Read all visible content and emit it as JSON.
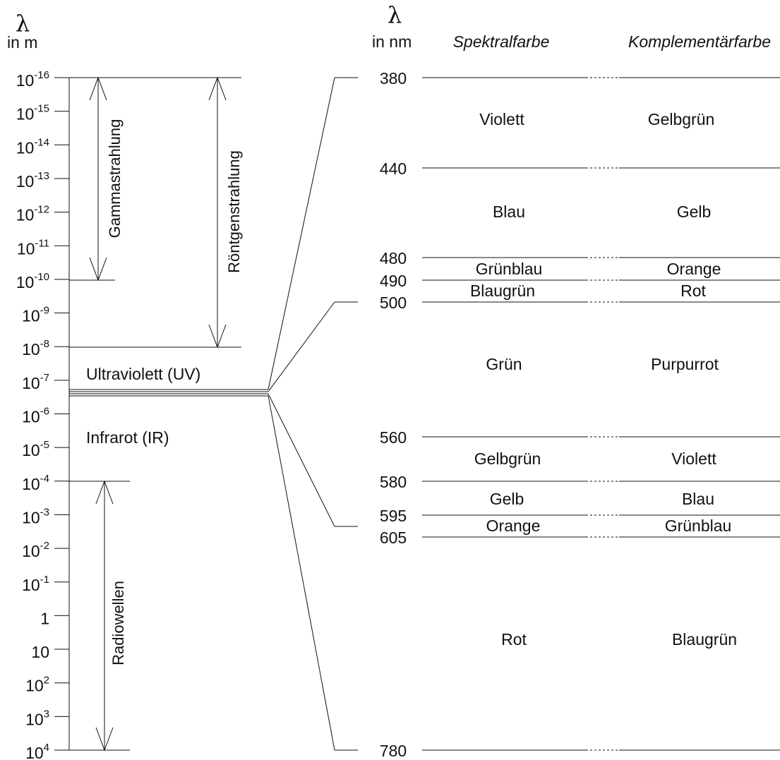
{
  "left_panel": {
    "lambda_symbol": "λ",
    "unit_label": "in m",
    "scale_ticks": [
      {
        "base": "10",
        "exp": "-16"
      },
      {
        "base": "10",
        "exp": "-15"
      },
      {
        "base": "10",
        "exp": "-14"
      },
      {
        "base": "10",
        "exp": "-13"
      },
      {
        "base": "10",
        "exp": "-12"
      },
      {
        "base": "10",
        "exp": "-11"
      },
      {
        "base": "10",
        "exp": "-10"
      },
      {
        "base": "10",
        "exp": "-9"
      },
      {
        "base": "10",
        "exp": "-8"
      },
      {
        "base": "10",
        "exp": "-7"
      },
      {
        "base": "10",
        "exp": "-6"
      },
      {
        "base": "10",
        "exp": "-5"
      },
      {
        "base": "10",
        "exp": "-4"
      },
      {
        "base": "10",
        "exp": "-3"
      },
      {
        "base": "10",
        "exp": "-2"
      },
      {
        "base": "10",
        "exp": "-1"
      },
      {
        "base": "1",
        "exp": ""
      },
      {
        "base": "10",
        "exp": ""
      },
      {
        "base": "10",
        "exp": "2"
      },
      {
        "base": "10",
        "exp": "3"
      },
      {
        "base": "10",
        "exp": "4"
      }
    ],
    "bands": {
      "gamma": "Gammastrahlung",
      "xray": "Röntgenstrahlung",
      "uv": "Ultraviolett (UV)",
      "ir": "Infrarot (IR)",
      "radio": "Radiowellen"
    }
  },
  "right_panel": {
    "lambda_symbol": "λ",
    "unit_label": "in nm",
    "spectral_header": "Spektralfarbe",
    "complement_header": "Komplementärfarbe",
    "boundaries": [
      "380",
      "440",
      "480",
      "490",
      "500",
      "560",
      "580",
      "595",
      "605",
      "780"
    ],
    "rows": [
      {
        "spectral": "Violett",
        "complement": "Gelbgrün"
      },
      {
        "spectral": "Blau",
        "complement": "Gelb"
      },
      {
        "spectral": "Grünblau",
        "complement": "Orange"
      },
      {
        "spectral": "Blaugrün",
        "complement": "Rot"
      },
      {
        "spectral": "Grün",
        "complement": "Purpurrot"
      },
      {
        "spectral": "Gelbgrün",
        "complement": "Violett"
      },
      {
        "spectral": "Gelb",
        "complement": "Blau"
      },
      {
        "spectral": "Orange",
        "complement": "Grünblau"
      },
      {
        "spectral": "Rot",
        "complement": "Blaugrün"
      }
    ]
  },
  "colors": {
    "ink": "#111111",
    "background": "#ffffff"
  }
}
